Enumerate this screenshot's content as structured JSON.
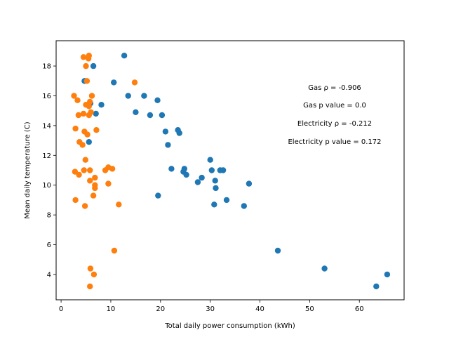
{
  "chart_data": {
    "type": "scatter",
    "title": "",
    "xlabel": "Total daily power consumption (kWh)",
    "ylabel": "Mean daily temperature (C)",
    "xlim": [
      -1,
      69
    ],
    "ylim": [
      2.3,
      19.7
    ],
    "xticks": [
      0,
      10,
      20,
      30,
      40,
      50,
      60
    ],
    "yticks": [
      4,
      6,
      8,
      10,
      12,
      14,
      16,
      18
    ],
    "grid": false,
    "series": [
      {
        "color": "#1f77b4",
        "points": [
          [
            12.7,
            18.7
          ],
          [
            6.5,
            18.0
          ],
          [
            4.7,
            17.0
          ],
          [
            10.6,
            16.9
          ],
          [
            13.5,
            16.0
          ],
          [
            16.7,
            16.0
          ],
          [
            19.4,
            15.7
          ],
          [
            8.1,
            15.4
          ],
          [
            5.9,
            15.5
          ],
          [
            15.0,
            14.9
          ],
          [
            17.9,
            14.7
          ],
          [
            20.3,
            14.7
          ],
          [
            7.0,
            14.8
          ],
          [
            21.0,
            13.6
          ],
          [
            23.5,
            13.7
          ],
          [
            23.8,
            13.5
          ],
          [
            5.6,
            12.9
          ],
          [
            21.5,
            12.7
          ],
          [
            30.0,
            11.7
          ],
          [
            22.2,
            11.1
          ],
          [
            24.8,
            11.1
          ],
          [
            24.6,
            10.9
          ],
          [
            30.3,
            11.0
          ],
          [
            32.0,
            11.0
          ],
          [
            32.6,
            11.0
          ],
          [
            25.2,
            10.7
          ],
          [
            28.3,
            10.5
          ],
          [
            27.5,
            10.2
          ],
          [
            31.0,
            10.3
          ],
          [
            37.8,
            10.1
          ],
          [
            31.1,
            9.8
          ],
          [
            19.5,
            9.3
          ],
          [
            33.3,
            9.0
          ],
          [
            30.8,
            8.7
          ],
          [
            36.8,
            8.6
          ],
          [
            43.6,
            5.6
          ],
          [
            53.0,
            4.4
          ],
          [
            65.6,
            4.0
          ],
          [
            63.4,
            3.2
          ]
        ]
      },
      {
        "color": "#ff7f0e",
        "points": [
          [
            4.5,
            18.6
          ],
          [
            5.6,
            18.7
          ],
          [
            5.5,
            18.5
          ],
          [
            5.0,
            18.0
          ],
          [
            5.2,
            17.0
          ],
          [
            14.8,
            16.9
          ],
          [
            2.6,
            16.0
          ],
          [
            6.2,
            16.0
          ],
          [
            3.3,
            15.7
          ],
          [
            5.8,
            15.6
          ],
          [
            5.4,
            15.4
          ],
          [
            5.0,
            15.4
          ],
          [
            5.6,
            15.3
          ],
          [
            6.0,
            14.9
          ],
          [
            3.5,
            14.7
          ],
          [
            4.5,
            14.8
          ],
          [
            5.6,
            14.7
          ],
          [
            2.9,
            13.8
          ],
          [
            4.7,
            13.6
          ],
          [
            7.1,
            13.7
          ],
          [
            5.3,
            13.4
          ],
          [
            3.7,
            12.9
          ],
          [
            4.3,
            12.7
          ],
          [
            4.9,
            11.7
          ],
          [
            2.8,
            10.9
          ],
          [
            3.6,
            10.7
          ],
          [
            4.6,
            11.0
          ],
          [
            5.8,
            11.0
          ],
          [
            9.5,
            11.2
          ],
          [
            10.3,
            11.1
          ],
          [
            8.9,
            11.0
          ],
          [
            6.8,
            10.5
          ],
          [
            5.8,
            10.3
          ],
          [
            9.5,
            10.1
          ],
          [
            6.8,
            10.0
          ],
          [
            6.8,
            9.8
          ],
          [
            6.5,
            9.3
          ],
          [
            2.9,
            9.0
          ],
          [
            4.8,
            8.6
          ],
          [
            11.6,
            8.7
          ],
          [
            10.7,
            5.6
          ],
          [
            5.9,
            4.4
          ],
          [
            6.6,
            4.0
          ],
          [
            5.8,
            3.2
          ]
        ]
      }
    ],
    "annotations": [
      "Gas ρ = -0.906",
      "Gas p value = 0.0",
      "Electricity ρ = -0.212",
      "Electricity p value = 0.172"
    ]
  }
}
